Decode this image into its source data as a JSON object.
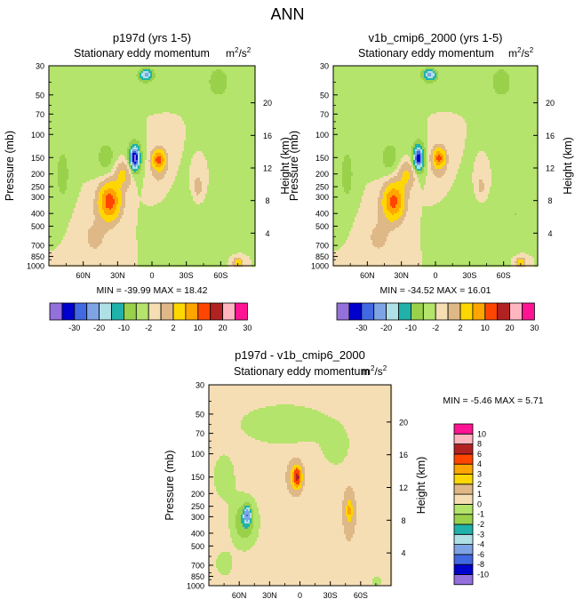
{
  "main_title": "ANN",
  "colors": {
    "abs": [
      "#9370db",
      "#0000cd",
      "#4169e1",
      "#7fa4e6",
      "#afe0e6",
      "#20b2aa",
      "#9ad14b",
      "#b4e46b",
      "#f5deb3",
      "#deb887",
      "#ffd700",
      "#ffa500",
      "#ff4500",
      "#b22222",
      "#ffb6c1",
      "#ff1493"
    ],
    "diff": [
      "#9370db",
      "#0000cd",
      "#4169e1",
      "#7fa4e6",
      "#afe0e6",
      "#20b2aa",
      "#9ad14b",
      "#b4e46b",
      "#f5deb3",
      "#deb887",
      "#ffd700",
      "#ffa500",
      "#ff4500",
      "#b22222",
      "#ffb6c1",
      "#ff1493"
    ]
  },
  "chart_data": [
    {
      "id": "panel1",
      "type": "contour",
      "title": "p197d (yrs 1-5)",
      "subtitle": "Stationary eddy momentum",
      "units": "m²/s²",
      "units_base": "m",
      "units_sup1": "2",
      "units_mid": "/s",
      "units_sup2": "2",
      "ylabel": "Pressure (mb)",
      "ylabel_right": "Height (km)",
      "xlim": [
        90,
        -90
      ],
      "ylim": [
        1000,
        30
      ],
      "yscale": "log",
      "x_ticks": [
        {
          "v": 60,
          "label": "60N"
        },
        {
          "v": 30,
          "label": "30N"
        },
        {
          "v": 0,
          "label": "0"
        },
        {
          "v": -30,
          "label": "30S"
        },
        {
          "v": -60,
          "label": "60S"
        }
      ],
      "y_ticks": [
        {
          "v": 30,
          "label": "30"
        },
        {
          "v": 50,
          "label": "50"
        },
        {
          "v": 70,
          "label": "70"
        },
        {
          "v": 100,
          "label": "100"
        },
        {
          "v": 150,
          "label": "150"
        },
        {
          "v": 200,
          "label": "200"
        },
        {
          "v": 250,
          "label": "250"
        },
        {
          "v": 300,
          "label": "300"
        },
        {
          "v": 400,
          "label": "400"
        },
        {
          "v": 500,
          "label": "500"
        },
        {
          "v": 700,
          "label": "700"
        },
        {
          "v": 850,
          "label": "850"
        },
        {
          "v": 1000,
          "label": "1000"
        }
      ],
      "height_ticks": [
        {
          "v": 4,
          "label": "4"
        },
        {
          "v": 8,
          "label": "8"
        },
        {
          "v": 12,
          "label": "12"
        },
        {
          "v": 16,
          "label": "16"
        },
        {
          "v": 20,
          "label": "20"
        }
      ],
      "min_value": -39.99,
      "max_value": 18.42,
      "stats_text": "MIN = -39.99  MAX =  18.42",
      "levels": [
        -40,
        -30,
        -25,
        -20,
        -15,
        -10,
        -5,
        -2,
        0,
        2,
        5,
        10,
        15,
        20,
        25,
        30
      ],
      "label_bar": {
        "orientation": "horizontal",
        "labels": [
          "-30",
          "-20",
          "-10",
          "-2",
          "2",
          "10",
          "20",
          "30"
        ]
      },
      "background": 0,
      "features": [
        {
          "lat": 5,
          "p": 35,
          "wlat": 5,
          "wp": 0.08,
          "amp": -16
        },
        {
          "lat": 7,
          "p": 40,
          "wlat": 16,
          "wp": 0.25,
          "amp": -1.5
        },
        {
          "lat": 40,
          "p": 150,
          "wlat": 10,
          "wp": 0.35,
          "amp": -3
        },
        {
          "lat": 78,
          "p": 200,
          "wlat": 7,
          "wp": 0.55,
          "amp": -3
        },
        {
          "lat": 25,
          "p": 200,
          "wlat": 8,
          "wp": 0.24,
          "amp": 6
        },
        {
          "lat": 37,
          "p": 320,
          "wlat": 9,
          "wp": 0.3,
          "amp": 18
        },
        {
          "lat": 15,
          "p": 150,
          "wlat": 3.5,
          "wp": 0.17,
          "amp": -30
        },
        {
          "lat": 15,
          "p": 150,
          "wlat": 7,
          "wp": 0.32,
          "amp": -4
        },
        {
          "lat": -6,
          "p": 155,
          "wlat": 5,
          "wp": 0.15,
          "amp": 16
        },
        {
          "lat": -6,
          "p": 175,
          "wlat": 9,
          "wp": 0.38,
          "amp": 3
        },
        {
          "lat": -40,
          "p": 250,
          "wlat": 5,
          "wp": 0.25,
          "amp": 3.5
        },
        {
          "lat": 50,
          "p": 600,
          "wlat": 14,
          "wp": 0.4,
          "amp": 2.5
        },
        {
          "lat": -30,
          "p": 420,
          "wlat": 18,
          "wp": 0.5,
          "amp": -1.5
        },
        {
          "lat": -70,
          "p": 400,
          "wlat": 8,
          "wp": 0.45,
          "amp": -2
        },
        {
          "lat": -58,
          "p": 40,
          "wlat": 12,
          "wp": 0.35,
          "amp": -3
        },
        {
          "lat": -75,
          "p": 930,
          "wlat": 4,
          "wp": 0.08,
          "amp": 8
        }
      ]
    },
    {
      "id": "panel2",
      "type": "contour",
      "title": "v1b_cmip6_2000 (yrs 1-5)",
      "subtitle": "Stationary eddy momentum",
      "units": "m²/s²",
      "units_base": "m",
      "units_sup1": "2",
      "units_mid": "/s",
      "units_sup2": "2",
      "ylabel": "Pressure (mb)",
      "ylabel_right": "Height (km)",
      "xlim": [
        90,
        -90
      ],
      "ylim": [
        1000,
        30
      ],
      "yscale": "log",
      "x_ticks": [
        {
          "v": 60,
          "label": "60N"
        },
        {
          "v": 30,
          "label": "30N"
        },
        {
          "v": 0,
          "label": "0"
        },
        {
          "v": -30,
          "label": "30S"
        },
        {
          "v": -60,
          "label": "60S"
        }
      ],
      "y_ticks": [
        {
          "v": 30,
          "label": "30"
        },
        {
          "v": 50,
          "label": "50"
        },
        {
          "v": 70,
          "label": "70"
        },
        {
          "v": 100,
          "label": "100"
        },
        {
          "v": 150,
          "label": "150"
        },
        {
          "v": 200,
          "label": "200"
        },
        {
          "v": 250,
          "label": "250"
        },
        {
          "v": 300,
          "label": "300"
        },
        {
          "v": 400,
          "label": "400"
        },
        {
          "v": 500,
          "label": "500"
        },
        {
          "v": 700,
          "label": "700"
        },
        {
          "v": 850,
          "label": "850"
        },
        {
          "v": 1000,
          "label": "1000"
        }
      ],
      "height_ticks": [
        {
          "v": 4,
          "label": "4"
        },
        {
          "v": 8,
          "label": "8"
        },
        {
          "v": 12,
          "label": "12"
        },
        {
          "v": 16,
          "label": "16"
        },
        {
          "v": 20,
          "label": "20"
        }
      ],
      "min_value": -34.52,
      "max_value": 16.01,
      "stats_text": "MIN = -34.52  MAX =  16.01",
      "levels": [
        -40,
        -30,
        -25,
        -20,
        -15,
        -10,
        -5,
        -2,
        0,
        2,
        5,
        10,
        15,
        20,
        25,
        30
      ],
      "label_bar": {
        "orientation": "horizontal",
        "labels": [
          "-30",
          "-20",
          "-10",
          "-2",
          "2",
          "10",
          "20",
          "30"
        ]
      },
      "background": 0,
      "features": [
        {
          "lat": 5,
          "p": 35,
          "wlat": 5,
          "wp": 0.08,
          "amp": -16
        },
        {
          "lat": 7,
          "p": 40,
          "wlat": 16,
          "wp": 0.25,
          "amp": -1.5
        },
        {
          "lat": 40,
          "p": 150,
          "wlat": 10,
          "wp": 0.35,
          "amp": -3
        },
        {
          "lat": 78,
          "p": 200,
          "wlat": 7,
          "wp": 0.55,
          "amp": -3
        },
        {
          "lat": 25,
          "p": 200,
          "wlat": 8,
          "wp": 0.24,
          "amp": 6
        },
        {
          "lat": 37,
          "p": 320,
          "wlat": 9,
          "wp": 0.3,
          "amp": 17
        },
        {
          "lat": 15,
          "p": 150,
          "wlat": 3.5,
          "wp": 0.17,
          "amp": -26
        },
        {
          "lat": 15,
          "p": 150,
          "wlat": 7,
          "wp": 0.32,
          "amp": -4
        },
        {
          "lat": -3,
          "p": 150,
          "wlat": 5,
          "wp": 0.15,
          "amp": 14
        },
        {
          "lat": -3,
          "p": 165,
          "wlat": 9,
          "wp": 0.38,
          "amp": 3
        },
        {
          "lat": -40,
          "p": 250,
          "wlat": 5,
          "wp": 0.25,
          "amp": 3
        },
        {
          "lat": 50,
          "p": 600,
          "wlat": 14,
          "wp": 0.4,
          "amp": 2.5
        },
        {
          "lat": -30,
          "p": 420,
          "wlat": 18,
          "wp": 0.5,
          "amp": -1.5
        },
        {
          "lat": -70,
          "p": 400,
          "wlat": 8,
          "wp": 0.45,
          "amp": -2
        },
        {
          "lat": -58,
          "p": 40,
          "wlat": 12,
          "wp": 0.35,
          "amp": -3
        },
        {
          "lat": -75,
          "p": 930,
          "wlat": 4,
          "wp": 0.08,
          "amp": 8
        }
      ]
    },
    {
      "id": "panel3",
      "type": "contour",
      "title": "p197d - v1b_cmip6_2000",
      "subtitle": "Stationary eddy momentum",
      "units": "m²/s²",
      "units_base": "m",
      "units_sup1": "2",
      "units_mid": "/s",
      "units_sup2": "2",
      "ylabel": "Pressure (mb)",
      "ylabel_right": "Height (km)",
      "xlim": [
        90,
        -90
      ],
      "ylim": [
        1000,
        30
      ],
      "yscale": "log",
      "x_ticks": [
        {
          "v": 60,
          "label": "60N"
        },
        {
          "v": 30,
          "label": "30N"
        },
        {
          "v": 0,
          "label": "0"
        },
        {
          "v": -30,
          "label": "30S"
        },
        {
          "v": -60,
          "label": "60S"
        }
      ],
      "y_ticks": [
        {
          "v": 30,
          "label": "30"
        },
        {
          "v": 50,
          "label": "50"
        },
        {
          "v": 70,
          "label": "70"
        },
        {
          "v": 100,
          "label": "100"
        },
        {
          "v": 150,
          "label": "150"
        },
        {
          "v": 200,
          "label": "200"
        },
        {
          "v": 250,
          "label": "250"
        },
        {
          "v": 300,
          "label": "300"
        },
        {
          "v": 400,
          "label": "400"
        },
        {
          "v": 500,
          "label": "500"
        },
        {
          "v": 700,
          "label": "700"
        },
        {
          "v": 850,
          "label": "850"
        },
        {
          "v": 1000,
          "label": "1000"
        }
      ],
      "height_ticks": [
        {
          "v": 4,
          "label": "4"
        },
        {
          "v": 8,
          "label": "8"
        },
        {
          "v": 12,
          "label": "12"
        },
        {
          "v": 16,
          "label": "16"
        },
        {
          "v": 20,
          "label": "20"
        }
      ],
      "min_value": -5.46,
      "max_value": 5.71,
      "stats_text": "MIN = -5.46  MAX =  5.71",
      "levels": [
        -12,
        -10,
        -8,
        -6,
        -4,
        -3,
        -2,
        -1,
        0,
        1,
        2,
        3,
        4,
        6,
        8,
        10
      ],
      "label_bar": {
        "orientation": "vertical",
        "labels": [
          "-10",
          "-8",
          "-6",
          "-4",
          "-3",
          "-2",
          "-1",
          "0",
          "1",
          "2",
          "3",
          "4",
          "6",
          "8",
          "10"
        ]
      },
      "background": 0.5,
      "features": [
        {
          "lat": 55,
          "p": 330,
          "wlat": 12,
          "wp": 0.4,
          "amp": -2.5
        },
        {
          "lat": 52,
          "p": 290,
          "wlat": 3.5,
          "wp": 0.14,
          "amp": -4.5
        },
        {
          "lat": 15,
          "p": 60,
          "wlat": 45,
          "wp": 0.35,
          "amp": -1.3
        },
        {
          "lat": 75,
          "p": 150,
          "wlat": 12,
          "wp": 0.45,
          "amp": -1.0
        },
        {
          "lat": -35,
          "p": 90,
          "wlat": 14,
          "wp": 0.35,
          "amp": -1.0
        },
        {
          "lat": 5,
          "p": 150,
          "wlat": 8,
          "wp": 0.3,
          "amp": 2
        },
        {
          "lat": 3,
          "p": 150,
          "wlat": 3.5,
          "wp": 0.15,
          "amp": 4.5
        },
        {
          "lat": -48,
          "p": 280,
          "wlat": 7,
          "wp": 0.5,
          "amp": 1.3
        },
        {
          "lat": -48,
          "p": 270,
          "wlat": 2.5,
          "wp": 0.15,
          "amp": 1.8
        },
        {
          "lat": 75,
          "p": 680,
          "wlat": 9,
          "wp": 0.25,
          "amp": -1.0
        },
        {
          "lat": -75,
          "p": 930,
          "wlat": 4,
          "wp": 0.08,
          "amp": -1.5
        }
      ]
    }
  ]
}
